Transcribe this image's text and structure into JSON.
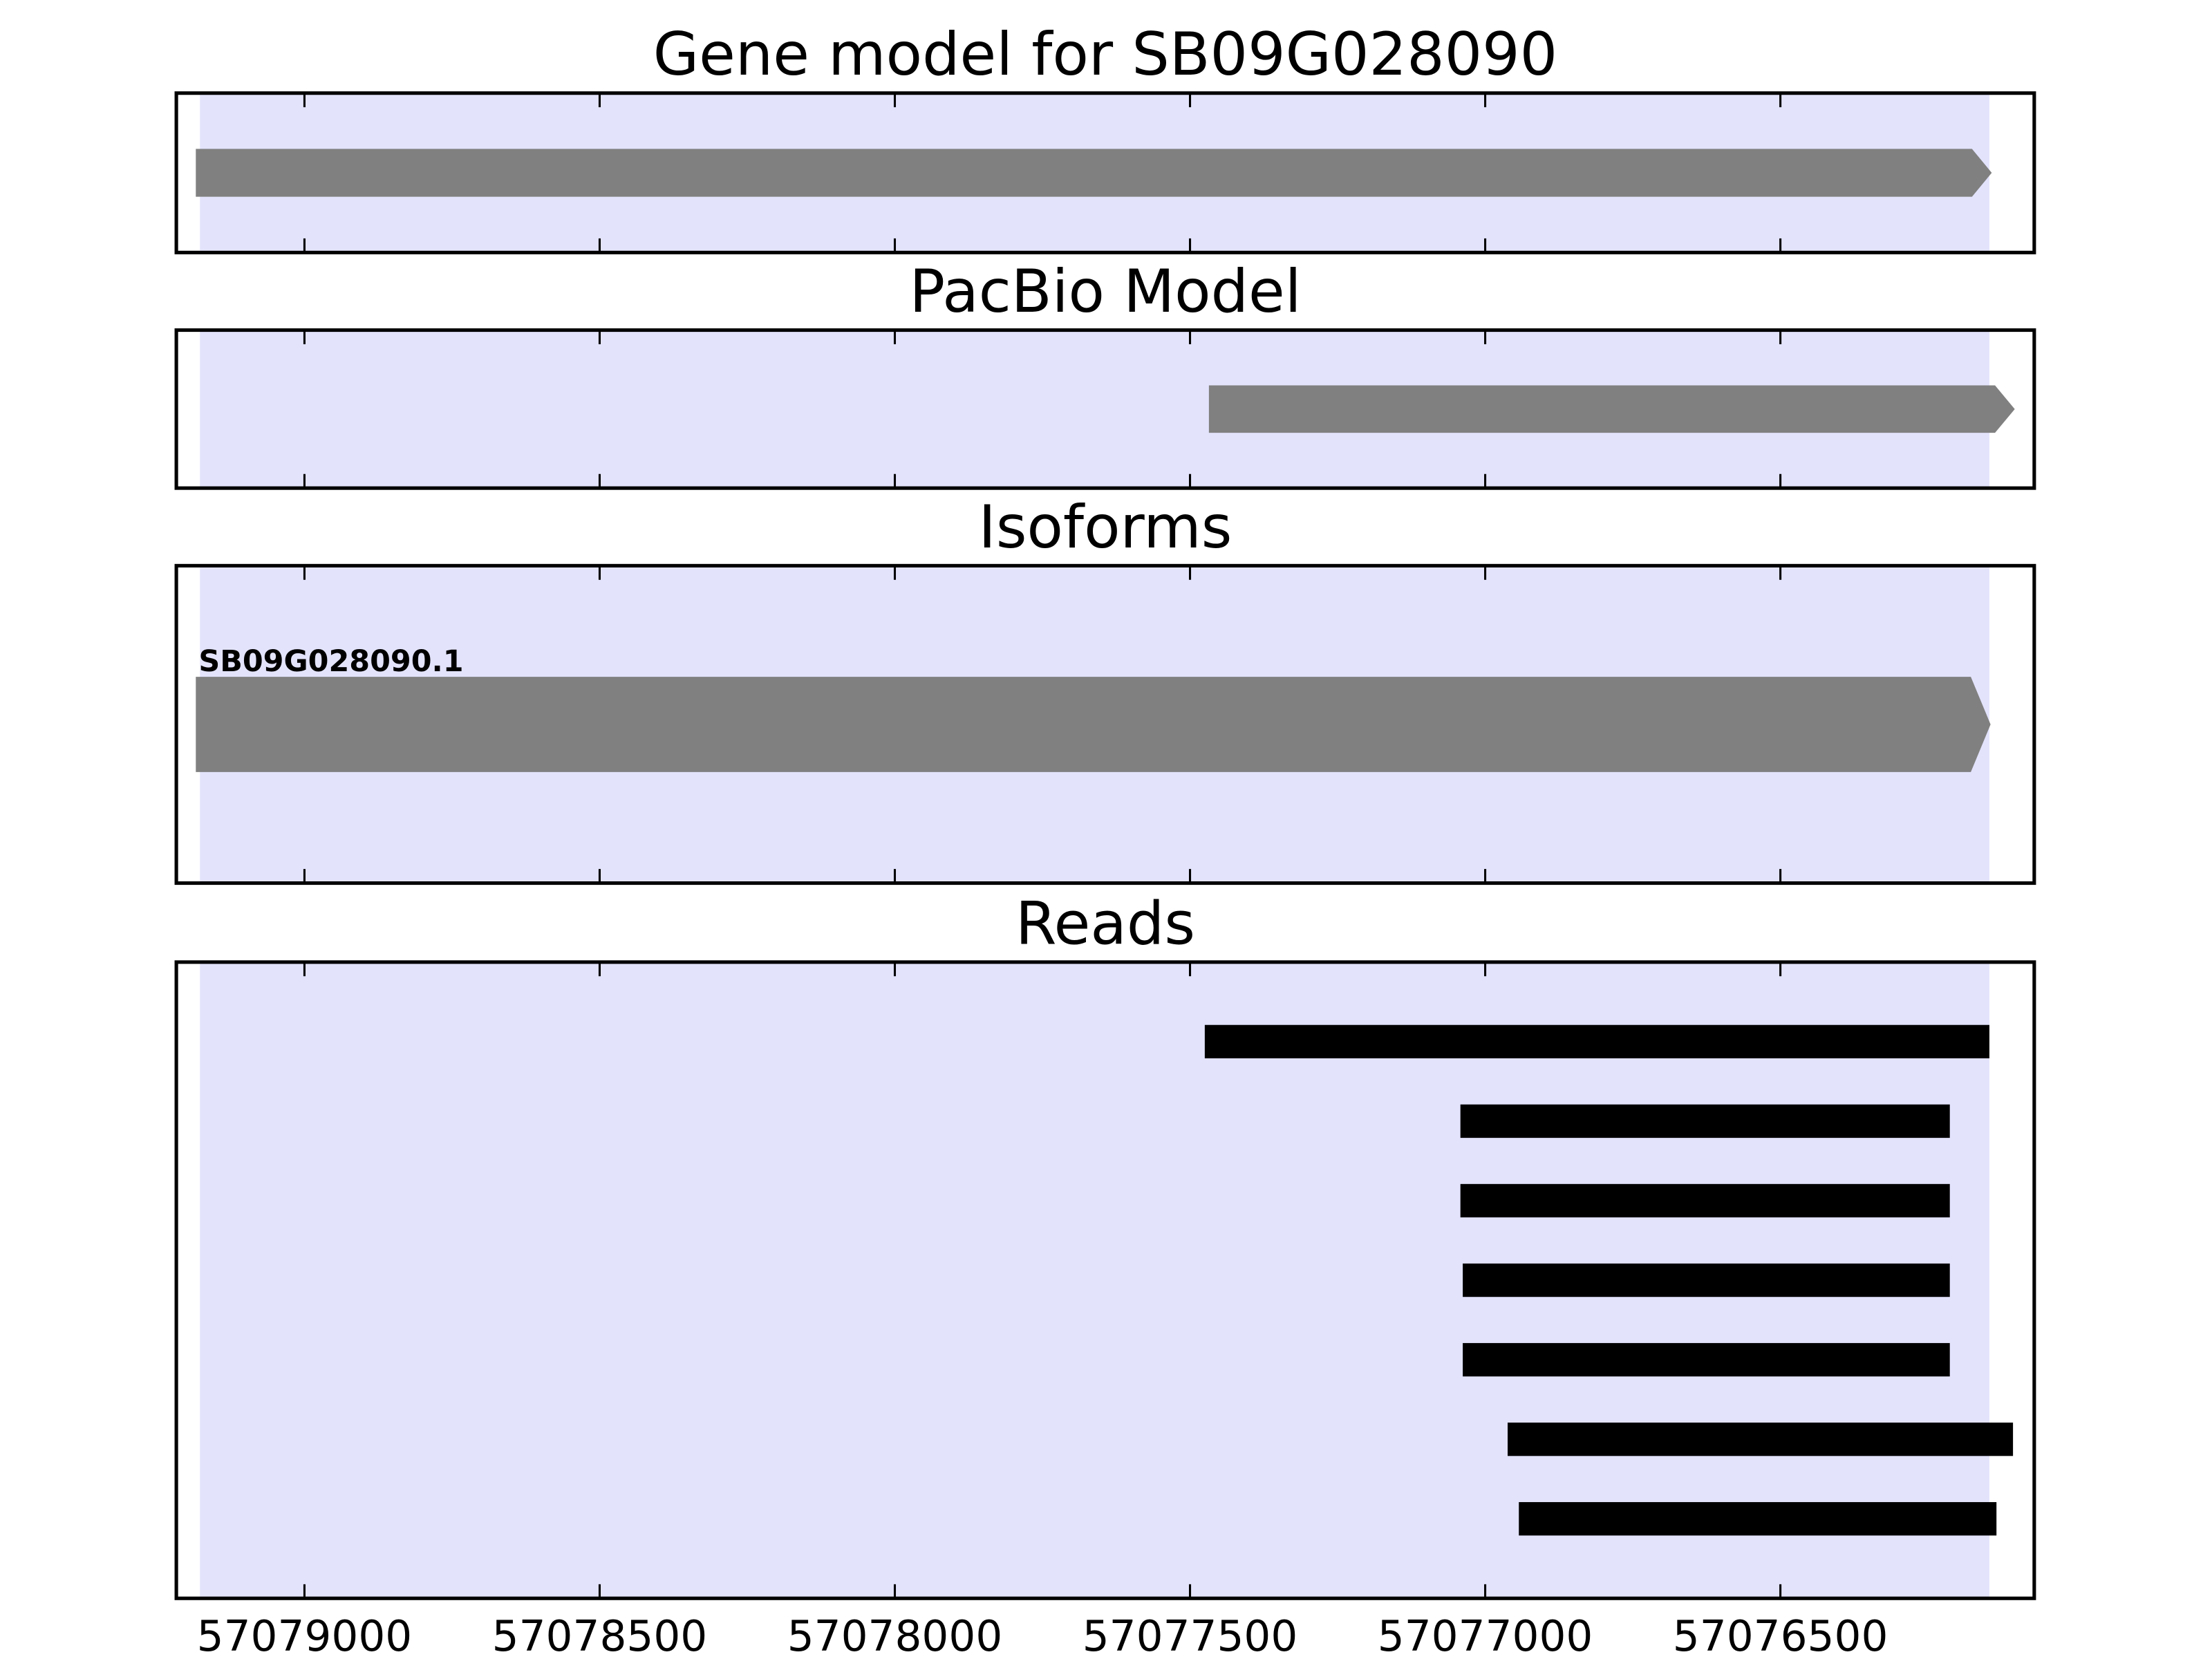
{
  "chart_data": [
    {
      "type": "gene_track",
      "title": "Gene model for SB09G028090",
      "xlim": [
        57079217,
        57076070
      ],
      "xticks": [
        57079000,
        57078500,
        57078000,
        57077500,
        57077000,
        57076500
      ],
      "highlight": [
        57079177,
        57076146
      ],
      "highlight_color": "#e3e3fc",
      "color": "#808080",
      "features": [
        {
          "start": 57079184,
          "end": 57076142
        }
      ]
    },
    {
      "type": "gene_track",
      "title": "PacBio Model",
      "xlim": [
        57079217,
        57076070
      ],
      "xticks": [
        57079000,
        57078500,
        57078000,
        57077500,
        57077000,
        57076500
      ],
      "highlight": [
        57079177,
        57076146
      ],
      "highlight_color": "#e3e3fc",
      "color": "#808080",
      "features": [
        {
          "start": 57077468,
          "end": 57076103
        }
      ]
    },
    {
      "type": "gene_track",
      "title": "Isoforms",
      "xlim": [
        57079217,
        57076070
      ],
      "xticks": [
        57079000,
        57078500,
        57078000,
        57077500,
        57077000,
        57076500
      ],
      "highlight": [
        57079177,
        57076146
      ],
      "highlight_color": "#e3e3fc",
      "color": "#808080",
      "features": [
        {
          "start": 57079184,
          "end": 57076144,
          "label": "SB09G028090.1"
        }
      ]
    },
    {
      "type": "read_track",
      "title": "Reads",
      "xlim": [
        57079217,
        57076070
      ],
      "xticks": [
        57079000,
        57078500,
        57078000,
        57077500,
        57077000,
        57076500
      ],
      "highlight": [
        57079177,
        57076146
      ],
      "highlight_color": "#e3e3fc",
      "color": "#000000",
      "show_tick_labels": true,
      "features": [
        {
          "start": 57077475,
          "end": 57076146
        },
        {
          "start": 57077042,
          "end": 57076213
        },
        {
          "start": 57077042,
          "end": 57076213
        },
        {
          "start": 57077038,
          "end": 57076213
        },
        {
          "start": 57077038,
          "end": 57076213
        },
        {
          "start": 57076962,
          "end": 57076106
        },
        {
          "start": 57076943,
          "end": 57076134
        }
      ]
    }
  ]
}
